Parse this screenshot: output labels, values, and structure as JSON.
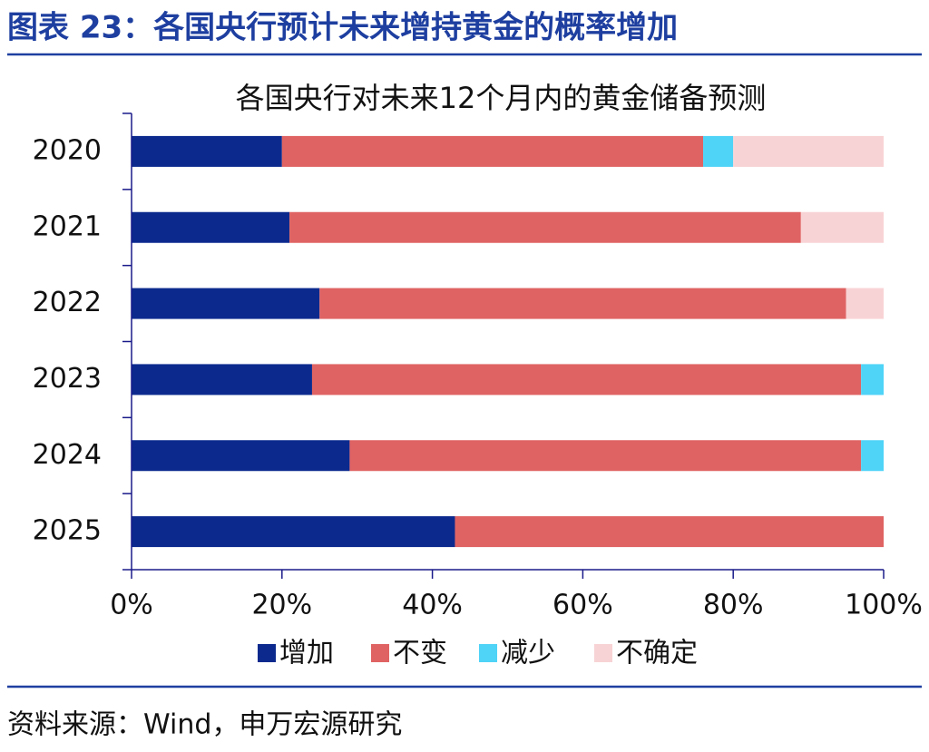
{
  "header": {
    "title": "图表 23：各国央行预计未来增持黄金的概率增加"
  },
  "chart_data": {
    "type": "stacked-bar-horizontal",
    "title": "各国央行对未来12个月内的黄金储备预测",
    "categories": [
      "2020",
      "2021",
      "2022",
      "2023",
      "2024",
      "2025"
    ],
    "series": [
      {
        "name": "增加",
        "color": "#0c2a8e",
        "values": [
          20,
          21,
          25,
          24,
          29,
          43
        ]
      },
      {
        "name": "不变",
        "color": "#e06363",
        "values": [
          56,
          68,
          70,
          73,
          68,
          57
        ]
      },
      {
        "name": "减少",
        "color": "#4fd3f7",
        "values": [
          4,
          0,
          0,
          3,
          3,
          0
        ]
      },
      {
        "name": "不确定",
        "color": "#f8d3d5",
        "values": [
          20,
          11,
          5,
          0,
          0,
          0
        ]
      }
    ],
    "xlim": [
      0,
      100
    ],
    "xticks": [
      {
        "value": 0,
        "label": "0%"
      },
      {
        "value": 20,
        "label": "20%"
      },
      {
        "value": 40,
        "label": "40%"
      },
      {
        "value": 60,
        "label": "60%"
      },
      {
        "value": 80,
        "label": "80%"
      },
      {
        "value": 100,
        "label": "100%"
      }
    ],
    "legend": "bottom"
  },
  "footer": {
    "source": "资料来源：Wind，申万宏源研究"
  }
}
